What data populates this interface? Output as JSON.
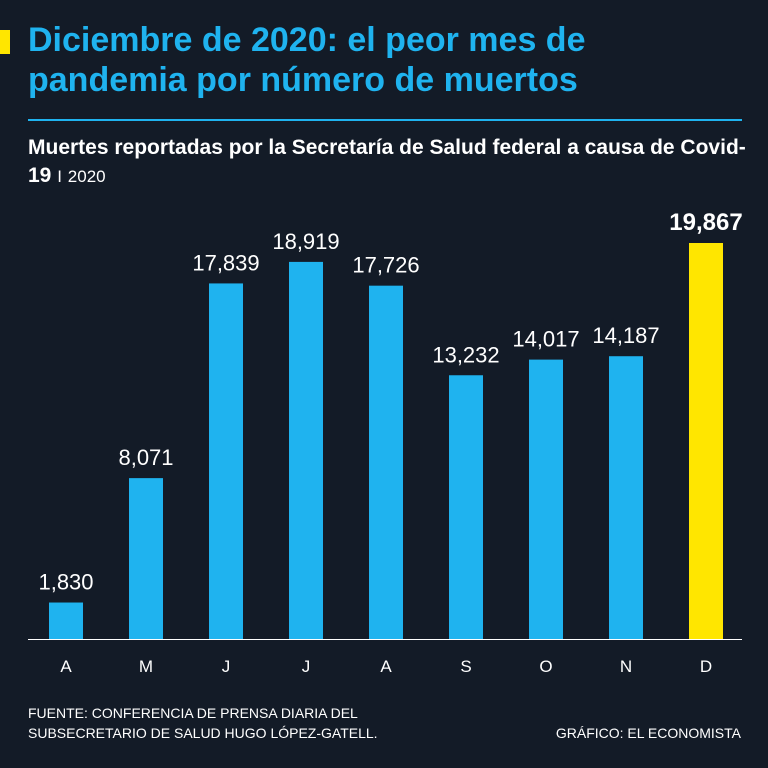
{
  "headline": "Diciembre de 2020: el peor mes de pandemia por número de muertos",
  "subtitle": {
    "main": "Muertes reportadas por la Secretaría de Salud federal a causa de Covid-19",
    "separator": "I",
    "year": "2020"
  },
  "colors": {
    "background": "#131b27",
    "accent": "#1fb3ef",
    "highlight": "#ffe600",
    "text": "#ffffff"
  },
  "chart_data": {
    "type": "bar",
    "title": "Muertes reportadas por la Secretaría de Salud federal a causa de Covid-19",
    "categories": [
      "A",
      "M",
      "J",
      "J",
      "A",
      "S",
      "O",
      "N",
      "D"
    ],
    "values": [
      1830,
      8071,
      17839,
      18919,
      17726,
      13232,
      14017,
      14187,
      19867
    ],
    "labels": [
      "1,830",
      "8,071",
      "17,839",
      "18,919",
      "17,726",
      "13,232",
      "14,017",
      "14,187",
      "19,867"
    ],
    "highlight_index": 8,
    "xlabel": "",
    "ylabel": "",
    "ylim": [
      0,
      19867
    ],
    "grid": false,
    "legend": "none"
  },
  "footer": {
    "source_line1": "FUENTE: CONFERENCIA DE PRENSA DIARIA DEL",
    "source_line2": "SUBSECRETARIO DE SALUD HUGO LÓPEZ-GATELL.",
    "credit": "GRÁFICO: EL ECONOMISTA"
  }
}
